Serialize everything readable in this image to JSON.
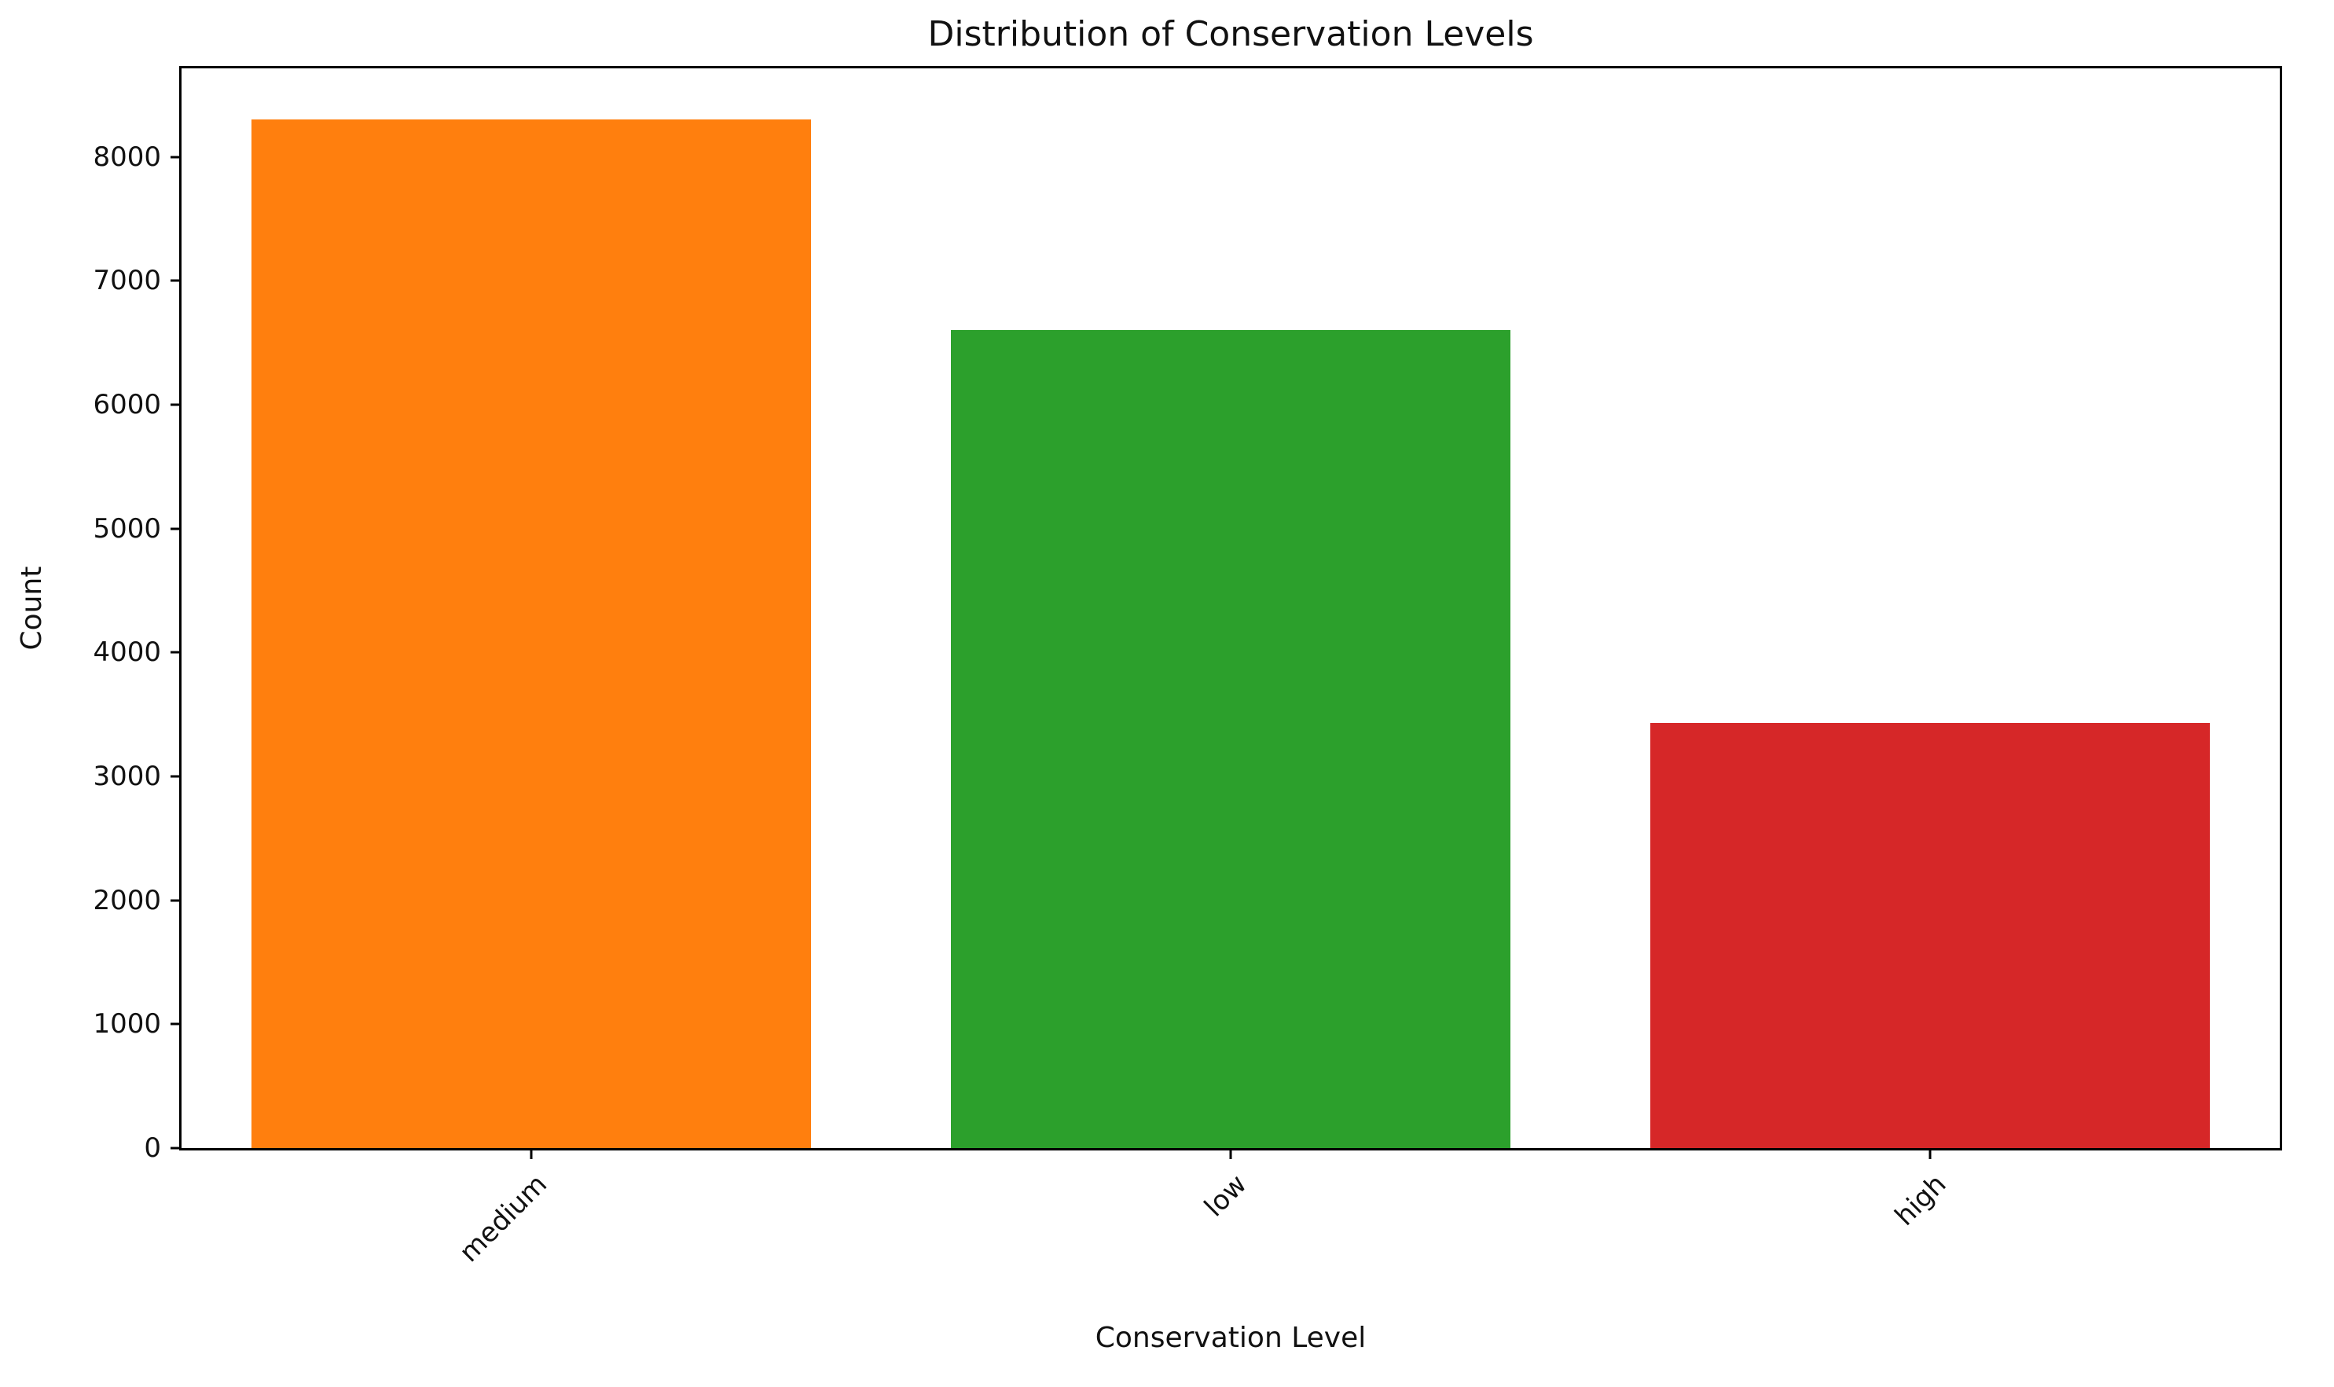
{
  "chart_data": {
    "type": "bar",
    "title": "Distribution of Conservation Levels",
    "xlabel": "Conservation Level",
    "ylabel": "Count",
    "categories": [
      "medium",
      "low",
      "high"
    ],
    "values": [
      8300,
      6600,
      3430
    ],
    "bar_colors": [
      "#ff7f0e",
      "#2ca02c",
      "#d62728"
    ],
    "ylim": [
      0,
      8715
    ],
    "yticks": [
      0,
      1000,
      2000,
      3000,
      4000,
      5000,
      6000,
      7000,
      8000
    ],
    "grid": "off",
    "legend": "none",
    "bar_width_fraction": 0.2667
  }
}
